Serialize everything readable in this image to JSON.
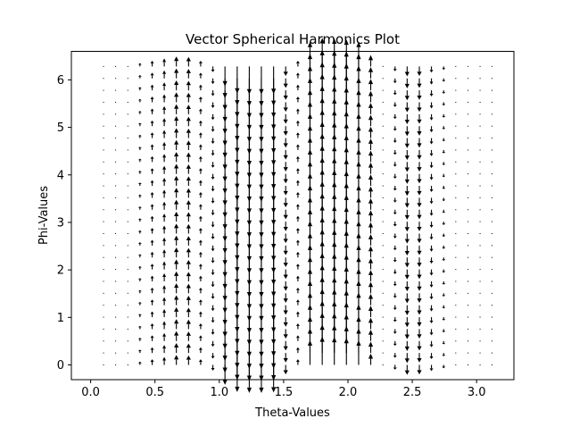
{
  "chart_data": {
    "type": "quiver",
    "title": "Vector Spherical Harmonics Plot",
    "xlabel": "Theta-Values",
    "ylabel": "Phi-Values",
    "xlim": [
      -0.15,
      3.29
    ],
    "ylim": [
      -0.31,
      6.6
    ],
    "xticks": [
      0.0,
      0.5,
      1.0,
      1.5,
      2.0,
      2.5,
      3.0
    ],
    "xtick_labels": [
      "0.0",
      "0.5",
      "1.0",
      "1.5",
      "2.0",
      "2.5",
      "3.0"
    ],
    "yticks": [
      0,
      1,
      2,
      3,
      4,
      5,
      6
    ],
    "ytick_labels": [
      "0",
      "1",
      "2",
      "3",
      "4",
      "5",
      "6"
    ],
    "theta_columns": [
      0.1,
      0.194,
      0.289,
      0.383,
      0.478,
      0.572,
      0.666,
      0.761,
      0.855,
      0.95,
      1.044,
      1.139,
      1.233,
      1.327,
      1.422,
      1.516,
      1.611,
      1.705,
      1.8,
      1.894,
      1.988,
      2.083,
      2.177,
      2.272,
      2.366,
      2.46,
      2.555,
      2.649,
      2.744,
      2.838,
      2.933,
      3.027,
      3.12
    ],
    "phi_start": 0.0,
    "phi_step": 0.2513,
    "phi_count": 26,
    "v_component": [
      0.01,
      0.02,
      0.04,
      0.07,
      0.12,
      0.17,
      0.21,
      0.2,
      0.12,
      -0.12,
      -0.42,
      -0.57,
      -0.59,
      -0.59,
      -0.58,
      -0.2,
      0.12,
      0.52,
      0.6,
      0.59,
      0.57,
      0.52,
      0.24,
      0.05,
      -0.1,
      -0.21,
      -0.2,
      -0.13,
      -0.07,
      -0.04,
      -0.02,
      -0.01,
      0.0
    ],
    "u_component": 0.0,
    "arrow_color": "#000000"
  }
}
